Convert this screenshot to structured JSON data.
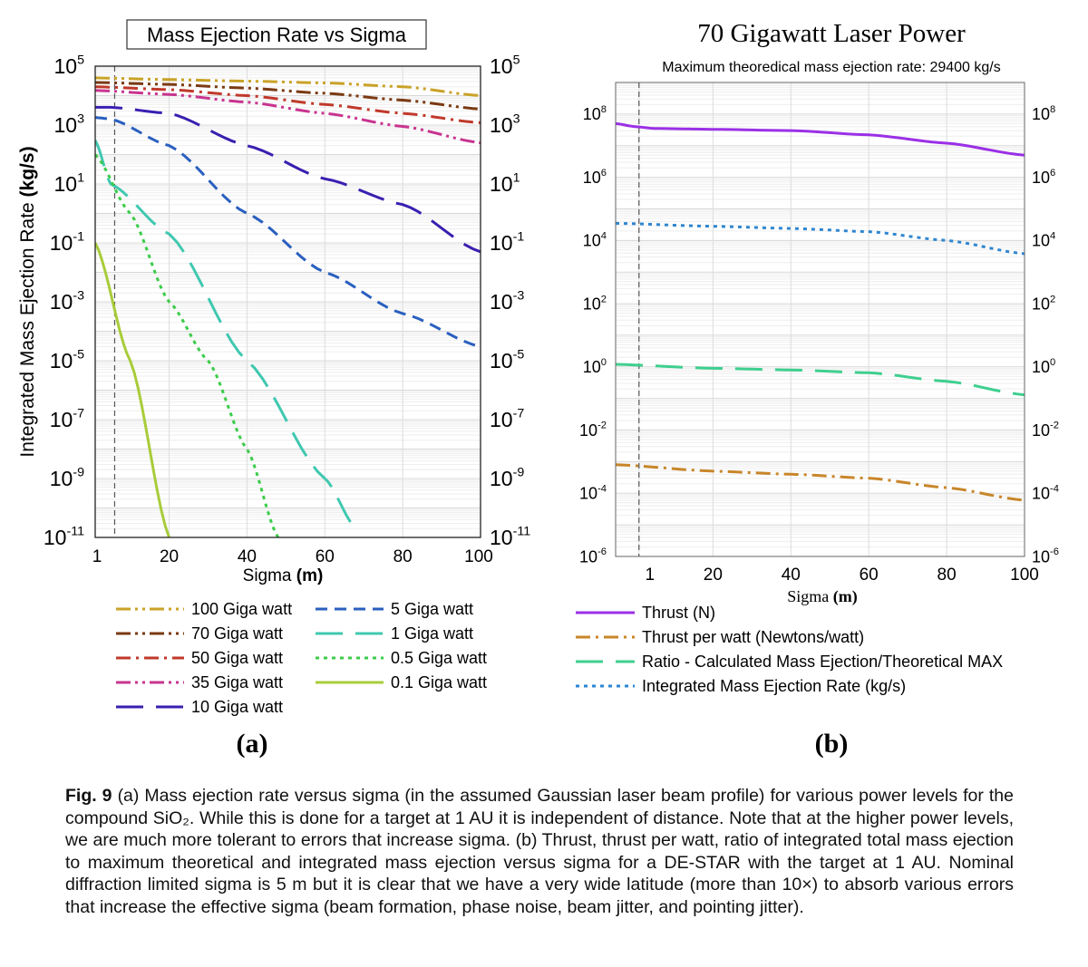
{
  "chart_data": [
    {
      "type": "line",
      "title": "Mass Ejection Rate vs Sigma",
      "xlabel": "Sigma (m)",
      "ylabel": "Integrated Mass Ejection Rate (kg/s)",
      "y_scale": "log",
      "xlim": [
        1,
        100
      ],
      "ylim": [
        1e-11,
        100000.0
      ],
      "x_ticks": [
        1,
        20,
        40,
        60,
        80,
        100
      ],
      "y_ticks": [
        100000.0,
        1000.0,
        10.0,
        0.1,
        0.001,
        1e-05,
        1e-07,
        1e-09,
        1e-11
      ],
      "y_tick_labels": [
        {
          "base": "10",
          "exp": "5"
        },
        {
          "base": "10",
          "exp": "3"
        },
        {
          "base": "10",
          "exp": "1"
        },
        {
          "base": "10",
          "exp": "-1"
        },
        {
          "base": "10",
          "exp": "-3"
        },
        {
          "base": "10",
          "exp": "-5"
        },
        {
          "base": "10",
          "exp": "-7"
        },
        {
          "base": "10",
          "exp": "-9"
        },
        {
          "base": "10",
          "exp": "-11"
        }
      ],
      "grid": true,
      "reference_line_x": 6,
      "legend_position": "bottom",
      "panel_label": "(a)",
      "series": [
        {
          "name": "100 Giga watt",
          "color": "#c9a227",
          "dash": "dash-dot-dot",
          "x": [
            1,
            20,
            40,
            60,
            80,
            100
          ],
          "y": [
            40000,
            35000,
            31000,
            27000,
            20000,
            10000
          ]
        },
        {
          "name": "70 Giga watt",
          "color": "#7a3a12",
          "dash": "dash-dot-dot",
          "x": [
            1,
            20,
            40,
            60,
            80,
            100
          ],
          "y": [
            28000,
            24000,
            18000,
            12000,
            7000,
            3500
          ]
        },
        {
          "name": "50 Giga watt",
          "color": "#c0392b",
          "dash": "dash-dot",
          "x": [
            1,
            20,
            40,
            60,
            80,
            100
          ],
          "y": [
            20000,
            16000,
            10000,
            5000,
            2500,
            1200
          ]
        },
        {
          "name": "35 Giga watt",
          "color": "#c8348f",
          "dash": "dash-dot-dot",
          "x": [
            1,
            20,
            40,
            60,
            80,
            100
          ],
          "y": [
            15000,
            11000,
            6000,
            2500,
            900,
            250
          ]
        },
        {
          "name": "10 Giga watt",
          "color": "#3a1fb0",
          "dash": "long-dash",
          "x": [
            1,
            5,
            20,
            40,
            60,
            80,
            100
          ],
          "y": [
            4000,
            4000,
            2500,
            200,
            15,
            2,
            0.05
          ]
        },
        {
          "name": "5 Giga watt",
          "color": "#2a5fbf",
          "dash": "dash",
          "x": [
            1,
            5,
            20,
            40,
            60,
            80,
            100
          ],
          "y": [
            1800,
            1600,
            200,
            1,
            0.01,
            0.0004,
            3e-05
          ]
        },
        {
          "name": "1 Giga watt",
          "color": "#40c8b0",
          "dash": "long-dash",
          "x": [
            1,
            5,
            20,
            40,
            60,
            68
          ],
          "y": [
            300,
            10,
            0.2,
            1e-05,
            1e-09,
            2e-11
          ]
        },
        {
          "name": "0.5 Giga watt",
          "color": "#3ccc4a",
          "dash": "dot",
          "x": [
            1,
            10,
            20,
            30,
            40,
            48
          ],
          "y": [
            100,
            1,
            0.001,
            1e-05,
            1e-08,
            1e-11
          ]
        },
        {
          "name": "0.1 Giga watt",
          "color": "#a8cc3a",
          "dash": "solid",
          "x": [
            1,
            10,
            20
          ],
          "y": [
            0.1,
            1e-05,
            1e-11
          ]
        }
      ]
    },
    {
      "type": "line",
      "title": "70 Gigawatt Laser Power",
      "subtitle": "Maximum theoredical mass ejection rate: 29400 kg/s",
      "xlabel": "Sigma (m)",
      "ylabel": "",
      "y_scale": "log",
      "xlim": [
        -5,
        100
      ],
      "ylim": [
        1e-06,
        1000000000.0
      ],
      "x_ticks": [
        1,
        20,
        40,
        60,
        80,
        100
      ],
      "y_ticks": [
        100000000.0,
        1000000.0,
        10000.0,
        100.0,
        1.0,
        0.01,
        0.0001,
        1e-06
      ],
      "y_tick_labels": [
        {
          "base": "10",
          "exp": "8"
        },
        {
          "base": "10",
          "exp": "6"
        },
        {
          "base": "10",
          "exp": "4"
        },
        {
          "base": "10",
          "exp": "2"
        },
        {
          "base": "10",
          "exp": "0"
        },
        {
          "base": "10",
          "exp": "-2"
        },
        {
          "base": "10",
          "exp": "-4"
        },
        {
          "base": "10",
          "exp": "-6"
        }
      ],
      "grid": true,
      "reference_line_x": 1,
      "legend_position": "bottom",
      "panel_label": "(b)",
      "series": [
        {
          "name": "Thrust (N)",
          "color": "#9b30e6",
          "dash": "solid",
          "x": [
            -5,
            0,
            5,
            20,
            40,
            60,
            80,
            100
          ],
          "y": [
            50000000,
            40000000,
            35000000,
            33000000,
            30000000,
            22000000,
            12000000,
            5000000
          ]
        },
        {
          "name": "Thrust per watt (Newtons/watt)",
          "color": "#c8862a",
          "dash": "dash-dot",
          "x": [
            -5,
            20,
            40,
            60,
            80,
            100
          ],
          "y": [
            0.0008,
            0.0005,
            0.0004,
            0.0003,
            0.00015,
            6e-05
          ]
        },
        {
          "name": "Ratio - Calculated Mass Ejection/Theoretical MAX",
          "color": "#3ecf8e",
          "dash": "long-dash",
          "x": [
            -5,
            20,
            40,
            60,
            80,
            100
          ],
          "y": [
            1.2,
            0.9,
            0.8,
            0.65,
            0.35,
            0.13
          ]
        },
        {
          "name": "Integrated Mass Ejection Rate (kg/s)",
          "color": "#2f86d0",
          "dash": "dot",
          "x": [
            -5,
            20,
            40,
            60,
            80,
            100
          ],
          "y": [
            35000,
            28000,
            24000,
            19000,
            10000,
            3800
          ]
        }
      ]
    }
  ],
  "caption": {
    "label": "Fig. 9",
    "text": "(a) Mass ejection rate versus sigma (in the assumed Gaussian laser beam profile) for various power levels for the compound SiO₂. While this is done for a target at 1 AU it is independent of distance. Note that at the higher power levels, we are much more tolerant to errors that increase sigma. (b) Thrust, thrust per watt, ratio of integrated total mass ejection to maximum theoretical and integrated mass ejection versus sigma for a DE-STAR with the target at 1 AU. Nominal diffraction limited sigma is 5 m but it is clear that we have a very wide latitude (more than 10×) to absorb various errors that increase the effective sigma (beam formation, phase noise, beam jitter, and pointing jitter)."
  }
}
